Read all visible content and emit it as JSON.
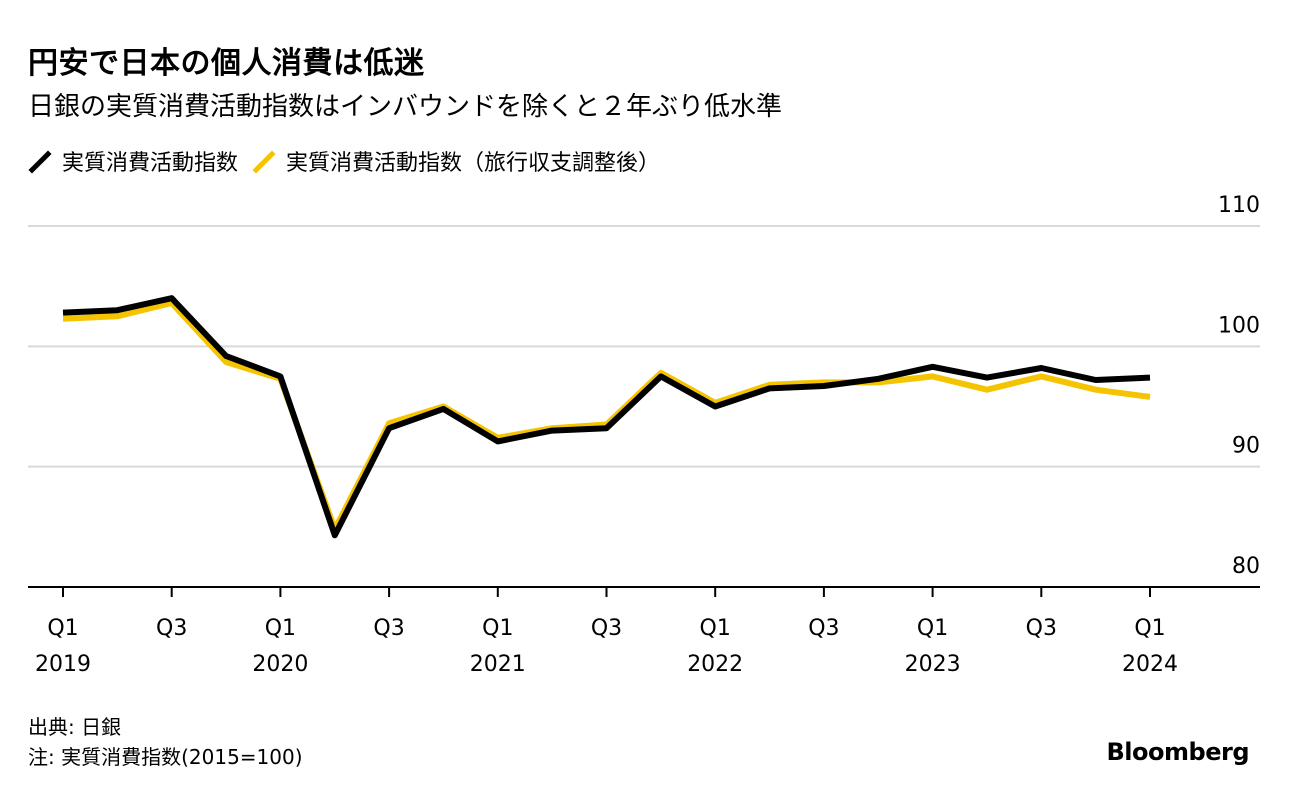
{
  "header": {
    "title": "円安で日本の個人消費は低迷",
    "subtitle": "日銀の実質消費活動指数はインバウンドを除くと２年ぶり低水準"
  },
  "colors": {
    "series_black": "#000000",
    "series_yellow": "#f5c400",
    "grid": "#d9d9d9",
    "axis": "#000000"
  },
  "chart_data": {
    "type": "line",
    "y_ticks": [
      80,
      90,
      100,
      110
    ],
    "ylim": [
      78,
      112
    ],
    "grid": true,
    "legend_position": "top-left",
    "x": [
      "2019Q1",
      "2019Q2",
      "2019Q3",
      "2019Q4",
      "2020Q1",
      "2020Q2",
      "2020Q3",
      "2020Q4",
      "2021Q1",
      "2021Q2",
      "2021Q3",
      "2021Q4",
      "2022Q1",
      "2022Q2",
      "2022Q3",
      "2022Q4",
      "2023Q1",
      "2023Q2",
      "2023Q3",
      "2023Q4",
      "2024Q1"
    ],
    "x_tick_labels": [
      {
        "index": 0,
        "quarter": "Q1",
        "year": "2019"
      },
      {
        "index": 2,
        "quarter": "Q3",
        "year": ""
      },
      {
        "index": 4,
        "quarter": "Q1",
        "year": "2020"
      },
      {
        "index": 6,
        "quarter": "Q3",
        "year": ""
      },
      {
        "index": 8,
        "quarter": "Q1",
        "year": "2021"
      },
      {
        "index": 10,
        "quarter": "Q3",
        "year": ""
      },
      {
        "index": 12,
        "quarter": "Q1",
        "year": "2022"
      },
      {
        "index": 14,
        "quarter": "Q3",
        "year": ""
      },
      {
        "index": 16,
        "quarter": "Q1",
        "year": "2023"
      },
      {
        "index": 18,
        "quarter": "Q3",
        "year": ""
      },
      {
        "index": 20,
        "quarter": "Q1",
        "year": "2024"
      }
    ],
    "series": [
      {
        "name": "実質消費活動指数",
        "color": "#000000",
        "values": [
          102.8,
          103.0,
          104.0,
          99.2,
          97.5,
          84.3,
          93.2,
          94.8,
          92.1,
          93.0,
          93.2,
          97.5,
          95.0,
          96.5,
          96.7,
          97.3,
          98.3,
          97.4,
          98.2,
          97.2,
          97.4
        ]
      },
      {
        "name": "実質消費活動指数（旅行収支調整後）",
        "color": "#f5c400",
        "values": [
          102.3,
          102.5,
          103.6,
          98.7,
          97.3,
          84.8,
          93.6,
          95.0,
          92.4,
          93.2,
          93.5,
          97.8,
          95.3,
          96.8,
          97.0,
          97.0,
          97.5,
          96.4,
          97.5,
          96.4,
          95.8
        ]
      }
    ]
  },
  "footer": {
    "source": "出典: 日銀",
    "note": "注: 実質消費指数(2015=100)",
    "brand": "Bloomberg"
  }
}
